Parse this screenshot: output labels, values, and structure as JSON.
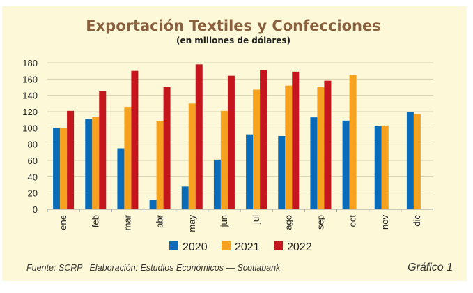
{
  "chart_data": {
    "type": "bar",
    "title": "Exportación Textiles y Confecciones",
    "subtitle": "(en millones de dólares)",
    "xlabel": "",
    "ylabel": "",
    "ylim": [
      0,
      180
    ],
    "yticks": [
      0,
      20,
      40,
      60,
      80,
      100,
      120,
      140,
      160,
      180
    ],
    "grid": true,
    "legend_position": "bottom",
    "categories": [
      "ene",
      "feb",
      "mar",
      "abr",
      "may",
      "jun",
      "jul",
      "ago",
      "sep",
      "oct",
      "nov",
      "dic"
    ],
    "series": [
      {
        "name": "2020",
        "color": "#0a6cb8",
        "values": [
          100,
          111,
          75,
          12,
          28,
          61,
          92,
          90,
          113,
          109,
          102,
          120
        ]
      },
      {
        "name": "2021",
        "color": "#f6a21e",
        "values": [
          100,
          114,
          125,
          108,
          130,
          121,
          147,
          152,
          150,
          165,
          103,
          117
        ]
      },
      {
        "name": "2022",
        "color": "#c4161c",
        "values": [
          121,
          145,
          170,
          150,
          178,
          164,
          171,
          169,
          158,
          null,
          null,
          null
        ]
      }
    ]
  },
  "footer": {
    "source": "Fuente: SCRP   Elaboración: Estudios Económicos — Scotiabank",
    "label": "Gráfico 1"
  },
  "colors": {
    "background": "#fdf9d8",
    "title": "#8a5f3e",
    "grid": "#d6d1b0"
  }
}
